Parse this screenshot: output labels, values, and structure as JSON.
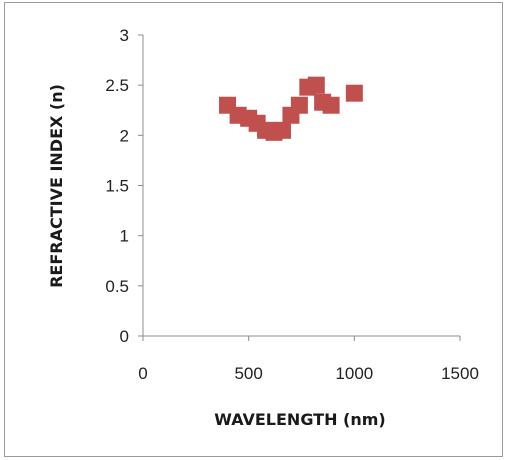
{
  "chart_data": {
    "type": "scatter",
    "title": "",
    "xlabel": "WAVELENGTH (nm)",
    "ylabel": "REFRACTIVE INDEX (n)",
    "xlim": [
      0,
      1500
    ],
    "ylim": [
      0,
      3
    ],
    "xticks": [
      0,
      500,
      1000,
      1500
    ],
    "yticks": [
      0,
      0.5,
      1,
      1.5,
      2,
      2.5,
      3
    ],
    "xtick_labels": [
      "0",
      "500",
      "1000",
      "1500"
    ],
    "ytick_labels": [
      "0",
      "0.5",
      "1",
      "1.5",
      "2",
      "2.5",
      "3"
    ],
    "grid": false,
    "legend": "none",
    "marker": "square",
    "marker_color": "#c0504d",
    "series": [
      {
        "x": [
          400,
          450,
          500,
          540,
          580,
          620,
          660,
          700,
          740,
          780,
          820,
          850,
          890,
          1000
        ],
        "y": [
          2.3,
          2.2,
          2.17,
          2.12,
          2.05,
          2.03,
          2.05,
          2.2,
          2.3,
          2.48,
          2.5,
          2.33,
          2.3,
          2.42
        ]
      }
    ]
  }
}
